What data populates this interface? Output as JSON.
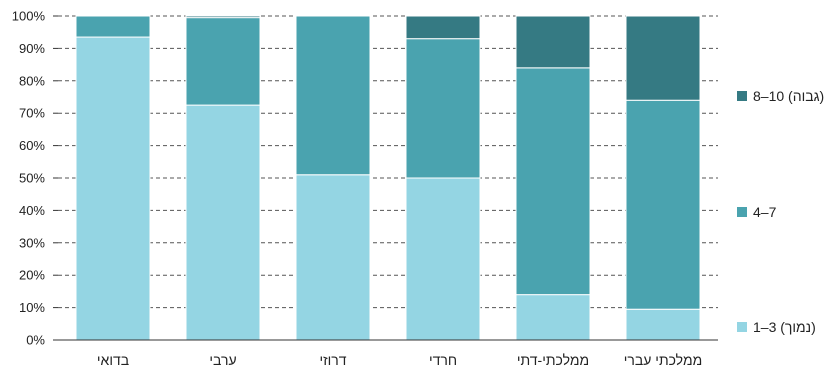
{
  "chart_data": {
    "type": "bar",
    "stacked": true,
    "title": "",
    "xlabel": "",
    "ylabel": "",
    "ylim": [
      0,
      100
    ],
    "y_ticks": [
      "0%",
      "10%",
      "20%",
      "30%",
      "40%",
      "50%",
      "60%",
      "70%",
      "80%",
      "90%",
      "100%"
    ],
    "grid": "horizontal dashed",
    "legend_position": "right",
    "categories": [
      "בדואי",
      "ערבי",
      "דרוזי",
      "חרדי",
      "ממלכתי-דתי",
      "ממלכתי עברי"
    ],
    "series": [
      {
        "name": "1–3 (נמוך)",
        "color": "#94d5e3",
        "values": [
          93.5,
          72.5,
          51,
          50,
          14,
          9.5
        ]
      },
      {
        "name": "4–7",
        "color": "#4aa3af",
        "values": [
          6.5,
          27,
          49,
          43,
          70,
          64.5
        ]
      },
      {
        "name": "8–10 (גבוה)",
        "color": "#357a83",
        "values": [
          0,
          0.5,
          0,
          7,
          16,
          26
        ]
      }
    ]
  }
}
